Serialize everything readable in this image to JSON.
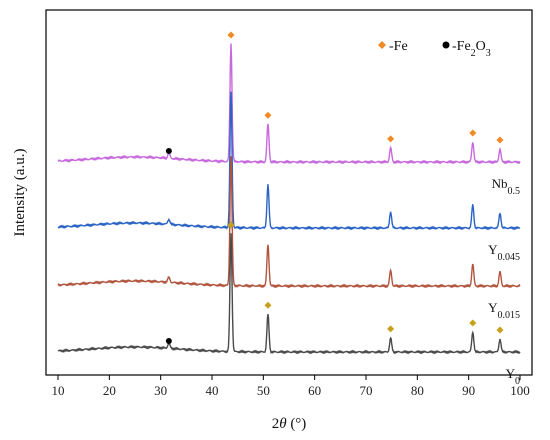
{
  "chart_data": {
    "type": "line",
    "xlabel_prefix": "2",
    "xlabel_symbol": "θ",
    "xlabel_unit": " (°)",
    "ylabel": "Intensity (a.u.)",
    "xlim": [
      10,
      100
    ],
    "xticks": [
      "10",
      "20",
      "30",
      "40",
      "50",
      "60",
      "70",
      "80",
      "90",
      "100"
    ],
    "grid": false,
    "legend_position": "top-right",
    "legend": [
      {
        "marker": "diamond",
        "color": "#f28a24",
        "prefix": "-Fe",
        "sub": "",
        "suffix": ""
      },
      {
        "marker": "circle",
        "color": "#000000",
        "prefix": "-Fe",
        "sub": "2",
        "suffix": "O",
        "sub2": "3"
      }
    ],
    "peaks": {
      "x": [
        43.7,
        50.9,
        74.8,
        90.8,
        96.1
      ],
      "rel_height": [
        1.0,
        0.32,
        0.12,
        0.17,
        0.11
      ]
    },
    "fe2o3_peak_x": 31.6,
    "series": [
      {
        "name": "Nb",
        "sub": "0.5",
        "color": "#c769dd",
        "offset": 3,
        "peak_scale": 1.0
      },
      {
        "name": "Y",
        "sub": "0.045",
        "color": "#2a63c4",
        "offset": 2,
        "peak_scale": 1.15
      },
      {
        "name": "Y",
        "sub": "0.015",
        "color": "#b2553e",
        "offset": 1,
        "peak_scale": 1.1
      },
      {
        "name": "Y",
        "sub": "0",
        "color": "#4a4a4a",
        "offset": 0,
        "peak_scale": 1.0
      }
    ],
    "markers": [
      {
        "series": 0,
        "type": "diamond",
        "color": "#f28a24",
        "x": [
          43.7,
          50.9,
          74.8,
          90.8,
          96.1
        ]
      },
      {
        "series": 0,
        "type": "circle",
        "color": "#000000",
        "x": [
          31.6
        ]
      },
      {
        "series": 3,
        "type": "diamond",
        "color": "#c8a11c",
        "x": [
          43.7,
          50.9,
          74.8,
          90.8,
          96.1
        ]
      },
      {
        "series": 3,
        "type": "circle",
        "color": "#000000",
        "x": [
          31.6
        ]
      }
    ]
  }
}
